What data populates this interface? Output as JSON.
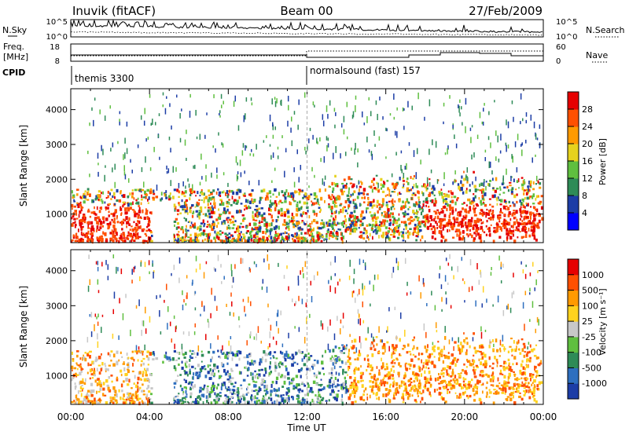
{
  "header": {
    "station": "Inuvik (fitACF)",
    "beam": "Beam 00",
    "date": "27/Feb/2009"
  },
  "top_panels": {
    "nsky": {
      "label": "N.Sky",
      "ticks": [
        "10^5",
        "10^0"
      ],
      "right_label": "N.Search",
      "right_ticks": [
        "10^5",
        "10^0"
      ]
    },
    "freq": {
      "label_line1": "Freq.",
      "label_line2": "[MHz]",
      "ticks": [
        "18",
        "8"
      ],
      "right_label": "Nave",
      "right_ticks": [
        "60",
        "0"
      ]
    },
    "cpid": {
      "label": "CPID",
      "programs": [
        "themis 3300",
        "normalsound (fast) 157"
      ],
      "switch_time_hours": 12
    }
  },
  "chart_data": [
    {
      "type": "heatmap",
      "panel": "power",
      "ylabel": "Slant Range [km]",
      "yticks": [
        1000,
        2000,
        3000,
        4000
      ],
      "ylim": [
        180,
        4600
      ],
      "xticks": [
        "00:00",
        "04:00",
        "08:00",
        "12:00",
        "16:00",
        "20:00",
        "00:00"
      ],
      "xlim_hours": [
        0,
        24
      ],
      "colorbar": {
        "label": "Power [dB]",
        "ticks": [
          "28",
          "24",
          "20",
          "16",
          "12",
          "8",
          "4"
        ],
        "colors": [
          "#0000ff",
          "#1c3da6",
          "#2e8b57",
          "#5fbf3f",
          "#e6d21e",
          "#ff9a00",
          "#ff5000",
          "#e60000"
        ]
      }
    },
    {
      "type": "heatmap",
      "panel": "velocity",
      "ylabel": "Slant Range [km]",
      "yticks": [
        1000,
        2000,
        3000,
        4000
      ],
      "ylim": [
        180,
        4600
      ],
      "xlabel": "Time UT",
      "xticks": [
        "00:00",
        "04:00",
        "08:00",
        "12:00",
        "16:00",
        "20:00",
        "00:00"
      ],
      "xlim_hours": [
        0,
        24
      ],
      "colorbar": {
        "label": "Velocity [m s⁻¹]",
        "ticks": [
          "1000",
          "500",
          "100",
          "25",
          "-25",
          "-100",
          "-500",
          "-1000"
        ],
        "colors": [
          "#1c3da6",
          "#2e6fbf",
          "#2e8b57",
          "#5fbf3f",
          "#c8c8c8",
          "#ffd21e",
          "#ff9a00",
          "#ff5000",
          "#e60000"
        ]
      }
    }
  ]
}
